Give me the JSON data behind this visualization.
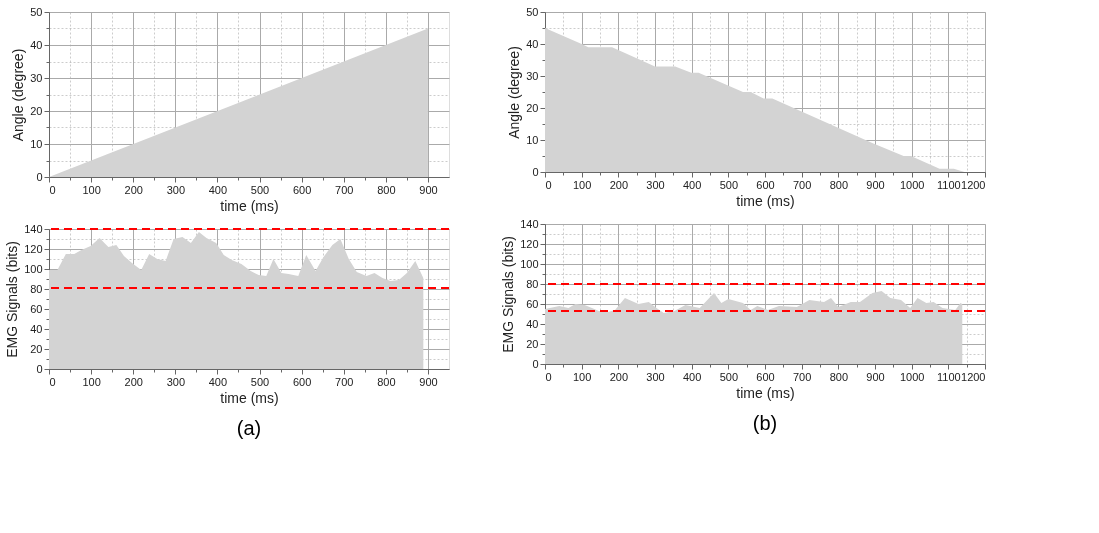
{
  "chart_data": [
    {
      "type": "area",
      "xlabel": "time (ms)",
      "ylabel": "Angle (degree)",
      "xlim": [
        0,
        950
      ],
      "ylim": [
        0,
        50
      ],
      "xticks": [
        0,
        {
          "value": 50,
          "label": null
        },
        100,
        {
          "value": 150,
          "label": null
        },
        200,
        {
          "value": 250,
          "label": null
        },
        300,
        {
          "value": 350,
          "label": null
        },
        400,
        {
          "value": 450,
          "label": null
        },
        500,
        {
          "value": 550,
          "label": null
        },
        600,
        {
          "value": 650,
          "label": null
        },
        700,
        {
          "value": 750,
          "label": null
        },
        800,
        {
          "value": 850,
          "label": null
        },
        900
      ],
      "yticks": [
        0,
        {
          "value": 5,
          "label": null
        },
        10,
        {
          "value": 15,
          "label": null
        },
        20,
        {
          "value": 25,
          "label": null
        },
        30,
        {
          "value": 35,
          "label": null
        },
        40,
        {
          "value": 45,
          "label": null
        },
        50
      ],
      "grid": true,
      "series": [
        {
          "color": "#d3d3d3",
          "x": [
            0,
            900
          ],
          "values": [
            0,
            45
          ]
        }
      ]
    },
    {
      "type": "area",
      "xlabel": "time (ms)",
      "ylabel": "Angle (degree)",
      "xlim": [
        0,
        1200
      ],
      "ylim": [
        0,
        50
      ],
      "xticks": [
        0,
        {
          "value": 50,
          "label": null
        },
        100,
        {
          "value": 150,
          "label": null
        },
        200,
        {
          "value": 250,
          "label": null
        },
        300,
        {
          "value": 350,
          "label": null
        },
        400,
        {
          "value": 450,
          "label": null
        },
        500,
        {
          "value": 550,
          "label": null
        },
        600,
        {
          "value": 650,
          "label": null
        },
        700,
        {
          "value": 750,
          "label": null
        },
        800,
        {
          "value": 850,
          "label": null
        },
        900,
        {
          "value": 950,
          "label": null
        },
        1000,
        {
          "value": 1050,
          "label": null
        },
        1100,
        {
          "value": 1150,
          "label": null
        },
        1200
      ],
      "yticks": [
        0,
        {
          "value": 5,
          "label": null
        },
        10,
        {
          "value": 15,
          "label": null
        },
        20,
        {
          "value": 25,
          "label": null
        },
        30,
        {
          "value": 35,
          "label": null
        },
        40,
        {
          "value": 45,
          "label": null
        },
        50
      ],
      "grid": true,
      "series": [
        {
          "color": "#d3d3d3",
          "x": [
            0,
            100,
            118,
            183,
            300,
            355,
            399,
            419,
            540,
            561,
            596,
            620,
            894,
            978,
            998,
            1076,
            1115,
            1144
          ],
          "values": [
            45,
            40,
            39,
            39,
            33,
            33,
            31,
            31,
            25,
            25,
            23,
            23,
            9,
            5,
            5,
            1,
            1,
            0
          ]
        }
      ]
    },
    {
      "type": "area",
      "xlabel": "time (ms)",
      "ylabel": "EMG Signals (bits)",
      "xlim": [
        0,
        950
      ],
      "ylim": [
        0,
        140
      ],
      "xticks": [
        0,
        {
          "value": 50,
          "label": null
        },
        100,
        {
          "value": 150,
          "label": null
        },
        200,
        {
          "value": 250,
          "label": null
        },
        300,
        {
          "value": 350,
          "label": null
        },
        400,
        {
          "value": 450,
          "label": null
        },
        500,
        {
          "value": 550,
          "label": null
        },
        600,
        {
          "value": 650,
          "label": null
        },
        700,
        {
          "value": 750,
          "label": null
        },
        800,
        {
          "value": 850,
          "label": null
        },
        900
      ],
      "yticks": [
        0,
        {
          "value": 10,
          "label": null
        },
        20,
        {
          "value": 30,
          "label": null
        },
        40,
        {
          "value": 50,
          "label": null
        },
        60,
        {
          "value": 70,
          "label": null
        },
        80,
        {
          "value": 90,
          "label": null
        },
        100,
        {
          "value": 110,
          "label": null
        },
        120,
        {
          "value": 130,
          "label": null
        },
        140
      ],
      "grid": true,
      "annotations": [
        "(a)"
      ],
      "ref_lines": [
        {
          "axis": "y",
          "value": 140,
          "color": "#ff0000",
          "line_style": "dashed"
        },
        {
          "axis": "y",
          "value": 81,
          "color": "#ff0000",
          "line_style": "dashed"
        }
      ],
      "series": [
        {
          "color": "#d3d3d3",
          "x": [
            0,
            20,
            40,
            60,
            77,
            99,
            120,
            141,
            160,
            178,
            197,
            219,
            238,
            257,
            277,
            296,
            317,
            337,
            356,
            374,
            397,
            415,
            434,
            457,
            479,
            498,
            516,
            533,
            552,
            569,
            592,
            611,
            633,
            652,
            673,
            692,
            712,
            731,
            754,
            773,
            792,
            811,
            831,
            850,
            870,
            889
          ],
          "values": [
            99,
            99,
            115,
            115,
            119,
            123,
            131,
            122,
            124,
            113,
            106,
            99,
            115,
            110,
            108,
            130,
            132,
            126,
            137,
            131,
            126,
            114,
            109,
            105,
            98,
            94,
            93,
            110,
            96,
            95,
            93,
            114,
            98,
            112,
            124,
            130,
            110,
            97,
            93,
            96,
            91,
            88,
            89,
            96,
            108,
            91
          ]
        }
      ]
    },
    {
      "type": "area",
      "xlabel": "time (ms)",
      "ylabel": "EMG Signals (bits)",
      "xlim": [
        0,
        1200
      ],
      "ylim": [
        0,
        140
      ],
      "xticks": [
        0,
        {
          "value": 50,
          "label": null
        },
        100,
        {
          "value": 150,
          "label": null
        },
        200,
        {
          "value": 250,
          "label": null
        },
        300,
        {
          "value": 350,
          "label": null
        },
        400,
        {
          "value": 450,
          "label": null
        },
        500,
        {
          "value": 550,
          "label": null
        },
        600,
        {
          "value": 650,
          "label": null
        },
        700,
        {
          "value": 750,
          "label": null
        },
        800,
        {
          "value": 850,
          "label": null
        },
        900,
        {
          "value": 950,
          "label": null
        },
        1000,
        {
          "value": 1050,
          "label": null
        },
        1100,
        {
          "value": 1150,
          "label": null
        },
        1200
      ],
      "yticks": [
        0,
        {
          "value": 10,
          "label": null
        },
        20,
        {
          "value": 30,
          "label": null
        },
        40,
        {
          "value": 50,
          "label": null
        },
        60,
        {
          "value": 70,
          "label": null
        },
        80,
        {
          "value": 90,
          "label": null
        },
        100,
        {
          "value": 110,
          "label": null
        },
        120,
        {
          "value": 130,
          "label": null
        },
        140
      ],
      "grid": true,
      "annotations": [
        "(b)"
      ],
      "ref_lines": [
        {
          "axis": "y",
          "value": 80,
          "color": "#ff0000",
          "line_style": "dashed"
        },
        {
          "axis": "y",
          "value": 53,
          "color": "#ff0000",
          "line_style": "dashed"
        }
      ],
      "series": [
        {
          "color": "#d3d3d3",
          "x": [
            0,
            39,
            64,
            83,
            108,
            128,
            147,
            172,
            191,
            218,
            255,
            283,
            304,
            324,
            353,
            383,
            422,
            461,
            481,
            500,
            540,
            561,
            579,
            608,
            638,
            687,
            721,
            761,
            780,
            800,
            834,
            859,
            893,
            918,
            942,
            971,
            996,
            1016,
            1040,
            1060,
            1084,
            1119,
            1133,
            1138
          ],
          "values": [
            55,
            58,
            56,
            60,
            59,
            56,
            53,
            52,
            54,
            66,
            60,
            62,
            56,
            51,
            53,
            59,
            56,
            71,
            61,
            65,
            61,
            54,
            58,
            54,
            58,
            57,
            64,
            62,
            66,
            57,
            62,
            62,
            71,
            73,
            66,
            64,
            56,
            66,
            61,
            62,
            56,
            54,
            61,
            60
          ]
        }
      ]
    }
  ]
}
